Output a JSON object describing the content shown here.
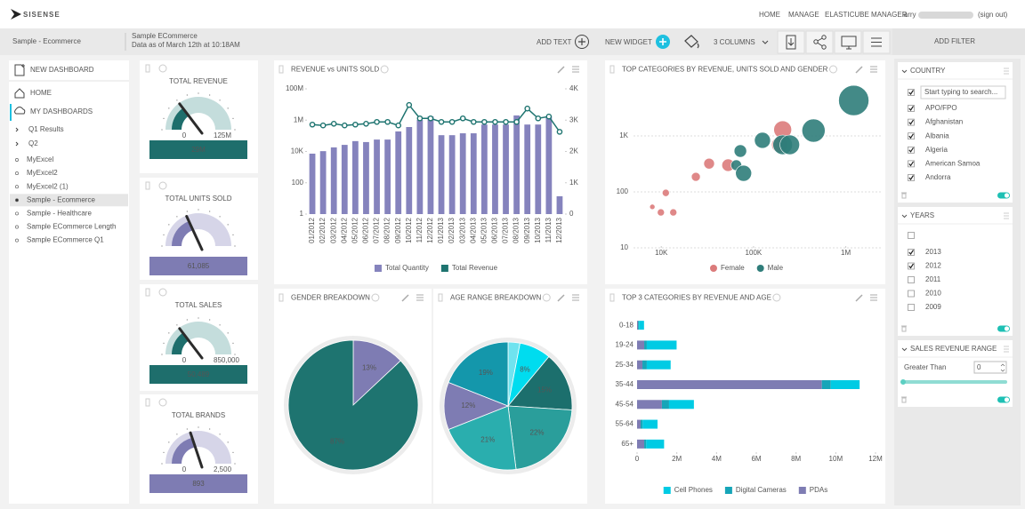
{
  "header": {
    "logo": "SISENSE",
    "nav": [
      "HOME",
      "MANAGE",
      "ELASTICUBE MANAGER"
    ],
    "user": "larry",
    "sign_out": "(sign out)"
  },
  "toolbar": {
    "title": "Sample - Ecommerce",
    "source": "Sample ECommerce",
    "updated": "Data as of March 12th at 10:18AM",
    "actions": [
      "ADD TEXT",
      "NEW WIDGET",
      "3 COLUMNS"
    ],
    "add_filter": "ADD FILTER"
  },
  "sidebar": {
    "new_dashboard": "NEW DASHBOARD",
    "home": "HOME",
    "my_dashboards": "MY DASHBOARDS",
    "folders": [
      "Q1 Results",
      "Q2"
    ],
    "dashboards": [
      "MyExcel",
      "MyExcel2",
      "MyExcel2 (1)",
      "Sample - Ecommerce",
      "Sample - Healthcare",
      "Sample ECommerce Length",
      "Sample ECommerce Q1"
    ],
    "selected": 3
  },
  "kpis": [
    {
      "title": "TOTAL REVENUE",
      "value": "29M",
      "min": "0",
      "max": "125M",
      "color": "#1e6e6c",
      "light": "#c4dddc"
    },
    {
      "title": "TOTAL UNITS SOLD",
      "value": "61,085",
      "color": "#7e7cb3",
      "light": "#d6d5e8"
    },
    {
      "title": "TOTAL SALES",
      "value": "50,489",
      "min": "0",
      "max": "850,000",
      "color": "#1e6e6c",
      "light": "#c4dddc"
    },
    {
      "title": "TOTAL BRANDS",
      "value": "893",
      "min": "0",
      "max": "2,500",
      "color": "#7e7cb3",
      "light": "#d6d5e8"
    }
  ],
  "chart_data": [
    {
      "type": "combo",
      "title": "REVENUE vs UNITS SOLD",
      "categories": [
        "01/2012",
        "02/2012",
        "03/2012",
        "04/2012",
        "05/2012",
        "06/2012",
        "07/2012",
        "08/2012",
        "09/2012",
        "10/2012",
        "11/2012",
        "12/2012",
        "01/2013",
        "02/2013",
        "03/2013",
        "04/2013",
        "05/2013",
        "06/2013",
        "07/2013",
        "08/2013",
        "09/2013",
        "10/2013",
        "11/2013",
        "12/2013"
      ],
      "series": [
        {
          "name": "Total Quantity",
          "type": "bar",
          "axis": "y2",
          "color": "#8583bd",
          "values": [
            1930,
            2010,
            2130,
            2210,
            2330,
            2300,
            2380,
            2380,
            2640,
            2780,
            3010,
            3120,
            2520,
            2520,
            2580,
            2580,
            2860,
            2860,
            2860,
            3150,
            2860,
            2860,
            3120,
            570
          ]
        },
        {
          "name": "Total Revenue",
          "type": "line",
          "color": "#1e7470",
          "values": [
            520000,
            460000,
            590000,
            460000,
            520000,
            590000,
            770000,
            770000,
            460000,
            9300000,
            1300000,
            1300000,
            770000,
            770000,
            1300000,
            770000,
            770000,
            770000,
            770000,
            770000,
            5500000,
            1300000,
            1700000,
            180000
          ]
        }
      ],
      "ylim": [
        1,
        100000000
      ],
      "yscale": "log",
      "yticks": [
        1,
        100,
        {
          "value": 10000,
          "label": "10K"
        },
        {
          "value": 1000000,
          "label": "1M"
        },
        {
          "value": 100000000,
          "label": "100M"
        }
      ],
      "y2lim": [
        0,
        4000
      ],
      "y2ticks": [
        0,
        {
          "value": 1000,
          "label": "1K"
        },
        {
          "value": 2000,
          "label": "2K"
        },
        {
          "value": 3000,
          "label": "3K"
        },
        {
          "value": 4000,
          "label": "4K"
        }
      ],
      "legend": "bottom"
    },
    {
      "type": "scatter",
      "title": "TOP CATEGORIES BY REVENUE, UNITS SOLD AND GENDER",
      "series": [
        {
          "name": "Female",
          "color": "#db7b7b",
          "x": [
            8000,
            11200,
            9900,
            13500,
            23700,
            33000,
            53000,
            207000,
            192000
          ],
          "values": [
            54,
            96,
            43,
            43,
            186,
            320,
            300,
            1290,
            694
          ],
          "sizes": [
            90,
            160,
            160,
            160,
            250,
            360,
            490,
            1000,
            810
          ]
        },
        {
          "name": "Male",
          "color": "#2f7d7a",
          "x": [
            72000,
            65000,
            78000,
            125000,
            207000,
            247000,
            447000,
            1220000
          ],
          "values": [
            537,
            300,
            215,
            834,
            694,
            694,
            1245,
            4300
          ],
          "sizes": [
            490,
            360,
            810,
            810,
            1210,
            1210,
            1690,
            2890
          ]
        }
      ],
      "xscale": "log",
      "yscale": "log",
      "xlim": [
        5000,
        2400000
      ],
      "ylim": [
        10,
        10000
      ],
      "xticks": [
        {
          "value": 10000,
          "label": "10K"
        },
        {
          "value": 100000,
          "label": "100K"
        },
        {
          "value": 1000000,
          "label": "1M"
        }
      ],
      "yticks": [
        10,
        100,
        {
          "value": 1000,
          "label": "1K"
        }
      ],
      "grid": true,
      "legend": "bottom"
    },
    {
      "type": "pie",
      "title": "GENDER BREAKDOWN",
      "values": [
        13,
        87
      ],
      "value_labels": [
        "13%",
        "87%"
      ],
      "colors": [
        "#7e7cb3",
        "#1e7470"
      ]
    },
    {
      "type": "pie",
      "title": "AGE RANGE BREAKDOWN",
      "values": [
        3,
        8,
        15,
        22,
        21,
        12,
        19
      ],
      "value_labels": [
        null,
        "8%",
        "15%",
        "22%",
        "21%",
        "12%",
        "19%"
      ],
      "colors": [
        "#6fe3ef",
        "#00dcef",
        "#1c6f6d",
        "#2a9e9b",
        "#2aaeae",
        "#7e7cb3",
        "#1497ab"
      ]
    },
    {
      "type": "hbar_stacked",
      "title": "TOP 3 CATEGORIES BY REVENUE AND AGE",
      "categories": [
        "0-18",
        "19-24",
        "25-34",
        "35-44",
        "45-54",
        "55-64",
        "65+"
      ],
      "series": [
        {
          "name": "Cell Phones",
          "color": "#00cbe4",
          "values": [
            250000,
            1500000,
            1200000,
            1450000,
            1250000,
            750000,
            900000
          ]
        },
        {
          "name": "Digital Cameras",
          "color": "#16a5b8",
          "values": [
            50000,
            130000,
            220000,
            450000,
            360000,
            100000,
            100000
          ]
        },
        {
          "name": "PDAs",
          "color": "#7e7cb3",
          "values": [
            50000,
            360000,
            270000,
            9300000,
            1250000,
            180000,
            360000
          ]
        }
      ],
      "xlim": [
        0,
        12000000
      ],
      "xticks": [
        0,
        {
          "value": 2000000,
          "label": "2M"
        },
        {
          "value": 4000000,
          "label": "4M"
        },
        {
          "value": 6000000,
          "label": "6M"
        },
        {
          "value": 8000000,
          "label": "8M"
        },
        {
          "value": 10000000,
          "label": "10M"
        },
        {
          "value": 12000000,
          "label": "12M"
        }
      ],
      "legend": "bottom"
    }
  ],
  "filters": [
    {
      "title": "COUNTRY",
      "search": "Start typing to search...",
      "items": [
        {
          "label": "APO/FPO",
          "checked": true
        },
        {
          "label": "Afghanistan",
          "checked": true
        },
        {
          "label": "Albania",
          "checked": true
        },
        {
          "label": "Algeria",
          "checked": true
        },
        {
          "label": "American Samoa",
          "checked": true
        },
        {
          "label": "Andorra",
          "checked": true
        }
      ]
    },
    {
      "title": "YEARS",
      "items": [
        {
          "label": "2013",
          "checked": true
        },
        {
          "label": "2012",
          "checked": true
        },
        {
          "label": "2011",
          "checked": false
        },
        {
          "label": "2010",
          "checked": false
        },
        {
          "label": "2009",
          "checked": false
        }
      ]
    },
    {
      "title": "SALES REVENUE RANGE",
      "operator": "Greater Than",
      "input": 0
    }
  ]
}
